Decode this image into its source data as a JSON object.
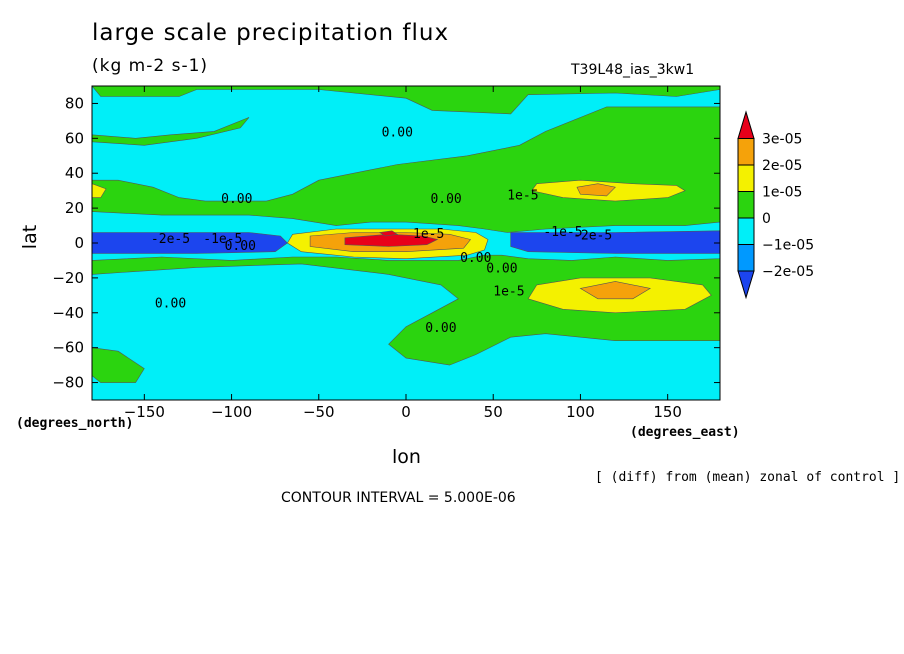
{
  "chart_data": {
    "type": "heatmap",
    "title": "large scale precipitation flux",
    "units": "(kg m-2 s-1)",
    "run_label": "T39L48_ias_3kw1",
    "xlabel": "lon",
    "ylabel": "lat",
    "xunits_label": "(degrees_east)",
    "yunits_label": "(degrees_north)",
    "xlim": [
      -180,
      180
    ],
    "ylim": [
      -90,
      90
    ],
    "xticks": [
      -150,
      -100,
      -50,
      0,
      50,
      100,
      150
    ],
    "yticks": [
      -80,
      -60,
      -40,
      -20,
      0,
      20,
      40,
      60,
      80
    ],
    "note": "[ (diff) from (mean) zonal of control ]",
    "contour_interval_text": "CONTOUR INTERVAL = 5.000E-06",
    "colorbar": {
      "labels": [
        "3e-05",
        "2e-05",
        "1e-05",
        "0",
        "−1e-05",
        "−2e-05"
      ],
      "levels": [
        {
          "min": 2.5e-05,
          "max": 3.5e-05,
          "color": "#e8001a"
        },
        {
          "min": 1.5e-05,
          "max": 2.5e-05,
          "color": "#f5a20a"
        },
        {
          "min": 5e-06,
          "max": 1.5e-05,
          "color": "#f4f100"
        },
        {
          "min": -5e-06,
          "max": 5e-06,
          "color": "#2bd40f"
        },
        {
          "min": -1.5e-05,
          "max": -5e-06,
          "color": "#00eff8"
        },
        {
          "min": -2.5e-05,
          "max": -1.5e-05,
          "color": "#0099ff"
        },
        {
          "min": -3.5e-05,
          "max": -2.5e-05,
          "color": "#1c45ee"
        }
      ]
    },
    "regions": [
      {
        "level": "#2bd40f",
        "poly": [
          [
            -180,
            90
          ],
          [
            180,
            90
          ],
          [
            180,
            -90
          ],
          [
            -180,
            -90
          ]
        ]
      },
      {
        "level": "#00eff8",
        "poly": [
          [
            -180,
            90
          ],
          [
            -175,
            84
          ],
          [
            -130,
            84
          ],
          [
            -120,
            88
          ],
          [
            -50,
            88
          ],
          [
            0,
            83
          ],
          [
            15,
            76
          ],
          [
            60,
            74
          ],
          [
            70,
            85
          ],
          [
            120,
            86
          ],
          [
            155,
            84
          ],
          [
            180,
            88
          ],
          [
            180,
            78
          ],
          [
            115,
            78
          ],
          [
            80,
            64
          ],
          [
            65,
            56
          ],
          [
            35,
            50
          ],
          [
            -5,
            45
          ],
          [
            -30,
            40
          ],
          [
            -50,
            36
          ],
          [
            -65,
            28
          ],
          [
            -80,
            24
          ],
          [
            -115,
            24
          ],
          [
            -130,
            26
          ],
          [
            -145,
            32
          ],
          [
            -165,
            36
          ],
          [
            -180,
            36
          ]
        ]
      },
      {
        "level": "#2bd40f",
        "poly": [
          [
            -180,
            62
          ],
          [
            -155,
            60
          ],
          [
            -135,
            62
          ],
          [
            -110,
            64
          ],
          [
            -90,
            72
          ],
          [
            -95,
            66
          ],
          [
            -120,
            60
          ],
          [
            -150,
            56
          ],
          [
            -180,
            58
          ]
        ]
      },
      {
        "level": "#00eff8",
        "poly": [
          [
            -180,
            18
          ],
          [
            -140,
            16
          ],
          [
            -90,
            16
          ],
          [
            -65,
            14
          ],
          [
            -40,
            10
          ],
          [
            -20,
            12
          ],
          [
            0,
            12
          ],
          [
            30,
            10
          ],
          [
            45,
            8
          ],
          [
            58,
            6
          ],
          [
            80,
            8
          ],
          [
            120,
            10
          ],
          [
            160,
            10
          ],
          [
            180,
            12
          ],
          [
            180,
            -9
          ],
          [
            150,
            -10
          ],
          [
            120,
            -8
          ],
          [
            95,
            -10
          ],
          [
            70,
            -9
          ],
          [
            55,
            -7
          ],
          [
            45,
            -7
          ],
          [
            30,
            -10
          ],
          [
            -10,
            -10
          ],
          [
            -40,
            -8
          ],
          [
            -65,
            -8
          ],
          [
            -100,
            -10
          ],
          [
            -140,
            -8
          ],
          [
            -180,
            -10
          ]
        ]
      },
      {
        "level": "#1c45ee",
        "poly": [
          [
            -180,
            6
          ],
          [
            -90,
            6
          ],
          [
            -72,
            4
          ],
          [
            -68,
            0
          ],
          [
            -75,
            -5
          ],
          [
            -120,
            -6
          ],
          [
            -180,
            -6
          ]
        ]
      },
      {
        "level": "#1c45ee",
        "poly": [
          [
            60,
            6
          ],
          [
            120,
            6
          ],
          [
            180,
            7
          ],
          [
            180,
            -6
          ],
          [
            120,
            -6
          ],
          [
            70,
            -5
          ],
          [
            60,
            -2
          ]
        ]
      },
      {
        "level": "#00eff8",
        "poly": [
          [
            -180,
            -18
          ],
          [
            -150,
            -16
          ],
          [
            -120,
            -14
          ],
          [
            -60,
            -12
          ],
          [
            -10,
            -18
          ],
          [
            20,
            -24
          ],
          [
            30,
            -32
          ],
          [
            15,
            -40
          ],
          [
            0,
            -48
          ],
          [
            -10,
            -58
          ],
          [
            0,
            -66
          ],
          [
            25,
            -70
          ],
          [
            40,
            -64
          ],
          [
            60,
            -54
          ],
          [
            80,
            -52
          ],
          [
            120,
            -56
          ],
          [
            180,
            -56
          ],
          [
            180,
            -90
          ],
          [
            -180,
            -90
          ]
        ]
      },
      {
        "level": "#2bd40f",
        "poly": [
          [
            -180,
            -60
          ],
          [
            -165,
            -62
          ],
          [
            -150,
            -72
          ],
          [
            -155,
            -80
          ],
          [
            -175,
            -80
          ],
          [
            -180,
            -76
          ]
        ]
      },
      {
        "level": "#f4f100",
        "poly": [
          [
            -65,
            5
          ],
          [
            -40,
            8
          ],
          [
            -10,
            8
          ],
          [
            20,
            8
          ],
          [
            40,
            6
          ],
          [
            47,
            2
          ],
          [
            45,
            -4
          ],
          [
            35,
            -7
          ],
          [
            0,
            -9
          ],
          [
            -30,
            -8
          ],
          [
            -60,
            -5
          ],
          [
            -68,
            0
          ]
        ]
      },
      {
        "level": "#f5a20a",
        "poly": [
          [
            -55,
            4
          ],
          [
            -30,
            6
          ],
          [
            0,
            6
          ],
          [
            25,
            5
          ],
          [
            37,
            2
          ],
          [
            33,
            -3
          ],
          [
            0,
            -5
          ],
          [
            -30,
            -5
          ],
          [
            -55,
            -2
          ]
        ]
      },
      {
        "level": "#e8001a",
        "poly": [
          [
            -35,
            3
          ],
          [
            -10,
            5
          ],
          [
            10,
            4
          ],
          [
            18,
            2
          ],
          [
            12,
            -1
          ],
          [
            -10,
            -2
          ],
          [
            -35,
            -1
          ]
        ]
      },
      {
        "level": "#e8001a",
        "poly": [
          [
            -15,
            6
          ],
          [
            -8,
            7
          ],
          [
            -5,
            5
          ],
          [
            -12,
            4
          ]
        ]
      },
      {
        "level": "#f4f100",
        "poly": [
          [
            75,
            34
          ],
          [
            100,
            36
          ],
          [
            130,
            34
          ],
          [
            155,
            33
          ],
          [
            160,
            30
          ],
          [
            150,
            26
          ],
          [
            120,
            24
          ],
          [
            90,
            26
          ],
          [
            72,
            30
          ]
        ]
      },
      {
        "level": "#f5a20a",
        "poly": [
          [
            98,
            32
          ],
          [
            110,
            34
          ],
          [
            120,
            32
          ],
          [
            115,
            27
          ],
          [
            100,
            28
          ]
        ]
      },
      {
        "level": "#f4f100",
        "poly": [
          [
            -180,
            34
          ],
          [
            -172,
            31
          ],
          [
            -175,
            26
          ],
          [
            -180,
            26
          ]
        ]
      },
      {
        "level": "#f4f100",
        "poly": [
          [
            75,
            -24
          ],
          [
            100,
            -20
          ],
          [
            140,
            -20
          ],
          [
            170,
            -24
          ],
          [
            175,
            -30
          ],
          [
            160,
            -38
          ],
          [
            120,
            -40
          ],
          [
            90,
            -38
          ],
          [
            70,
            -32
          ]
        ]
      },
      {
        "level": "#f5a20a",
        "poly": [
          [
            100,
            -26
          ],
          [
            120,
            -22
          ],
          [
            140,
            -26
          ],
          [
            130,
            -32
          ],
          [
            110,
            -32
          ]
        ]
      }
    ],
    "contour_labels": [
      {
        "text": "0.00",
        "lon": -5,
        "lat": 63
      },
      {
        "text": "0.00",
        "lon": -97,
        "lat": 25
      },
      {
        "text": "0.00",
        "lon": 23,
        "lat": 25
      },
      {
        "text": "1e-5",
        "lon": 67,
        "lat": 27
      },
      {
        "text": "-2e-5",
        "lon": -135,
        "lat": 2
      },
      {
        "text": "-1e-5",
        "lon": -105,
        "lat": 2
      },
      {
        "text": "0.00",
        "lon": -95,
        "lat": -2
      },
      {
        "text": "1e-5",
        "lon": 13,
        "lat": 5
      },
      {
        "text": "-1e-5",
        "lon": 90,
        "lat": 6
      },
      {
        "text": "-2e-5",
        "lon": 107,
        "lat": 4
      },
      {
        "text": "0.00",
        "lon": 40,
        "lat": -9
      },
      {
        "text": "0.00",
        "lon": 55,
        "lat": -15
      },
      {
        "text": "1e-5",
        "lon": 59,
        "lat": -28
      },
      {
        "text": "0.00",
        "lon": -135,
        "lat": -35
      },
      {
        "text": "0.00",
        "lon": 20,
        "lat": -49
      }
    ],
    "grid": false
  }
}
